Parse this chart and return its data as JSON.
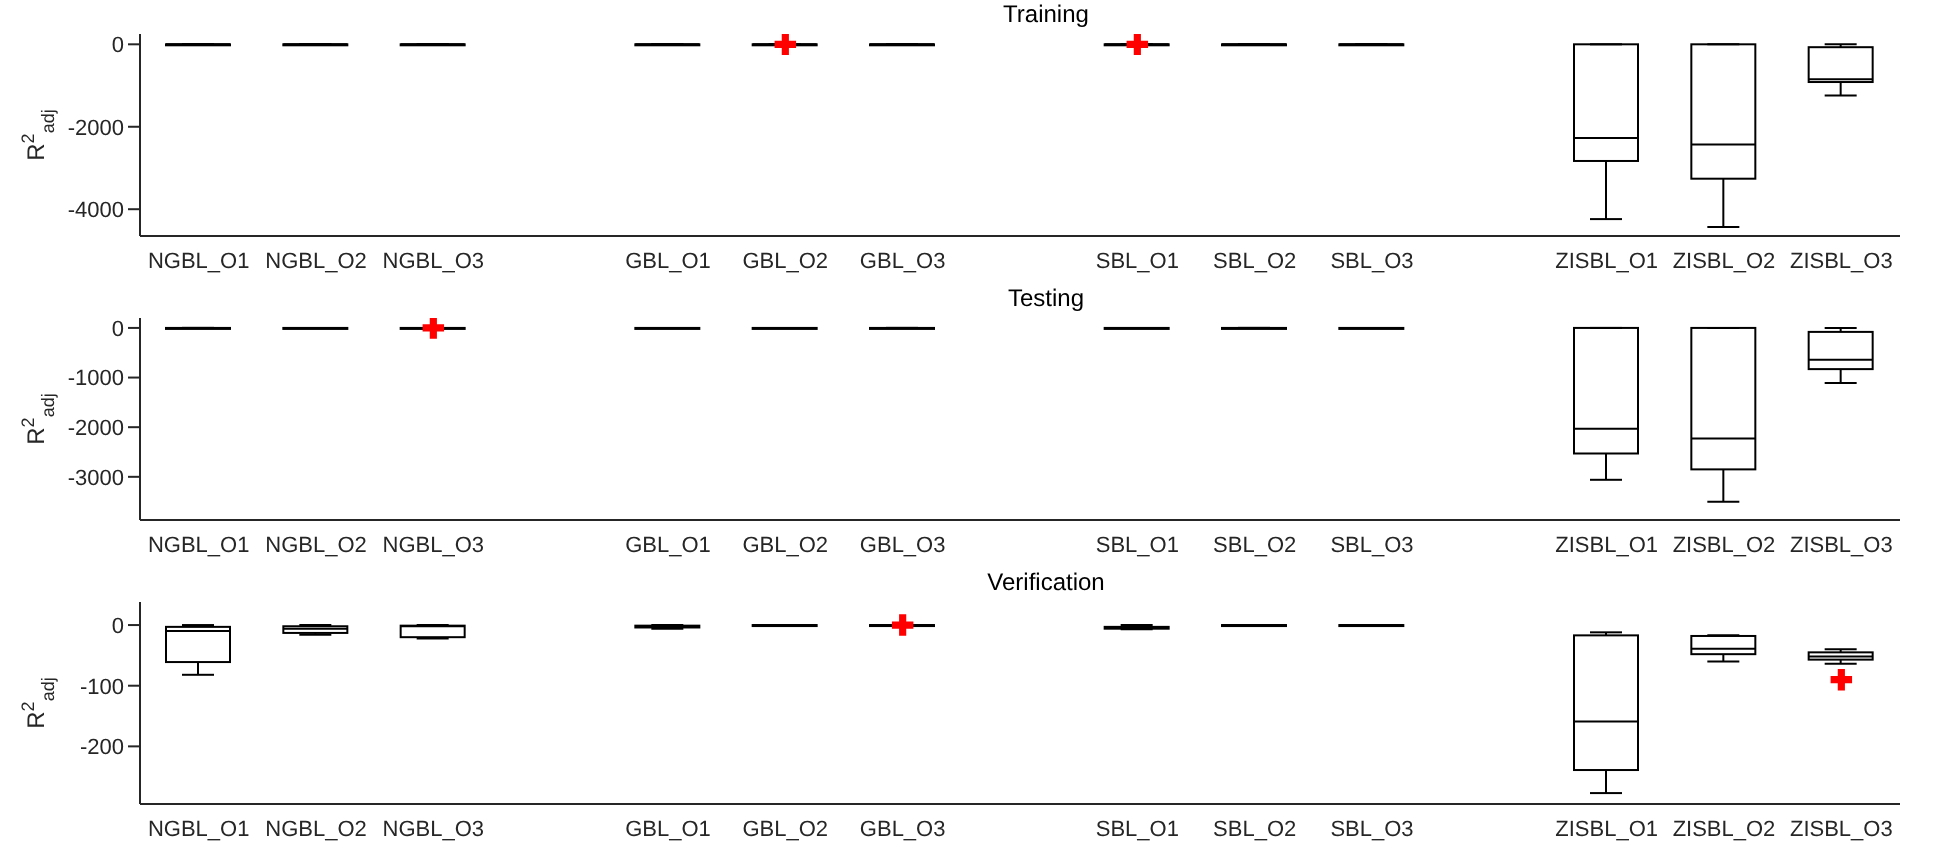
{
  "chart_data": [
    {
      "type": "box",
      "title": "Training",
      "ylabel": "R$^{2}$$_{adj}$",
      "categories": [
        "NGBL_O1",
        "NGBL_O2",
        "NGBL_O3",
        null,
        "GBL_O1",
        "GBL_O2",
        "GBL_O3",
        null,
        "SBL_O1",
        "SBL_O2",
        "SBL_O3",
        null,
        "ZISBL_O1",
        "ZISBL_O2",
        "ZISBL_O3"
      ],
      "ylim": [
        -4650,
        250
      ],
      "yticks": [
        0,
        -2000,
        -4000
      ],
      "series": [
        {
          "color": "#000000",
          "boxes": [
            {
              "low": 0,
              "q1": 0,
              "median": 0,
              "q3": 0,
              "high": 0
            },
            {
              "low": 0,
              "q1": 0,
              "median": 0,
              "q3": 0,
              "high": 0
            },
            {
              "low": 0,
              "q1": 0,
              "median": 0,
              "q3": 0,
              "high": 0
            },
            null,
            {
              "low": 0,
              "q1": 0,
              "median": 0,
              "q3": 0,
              "high": 0
            },
            {
              "low": 0,
              "q1": 0,
              "median": 0,
              "q3": 0,
              "high": 0,
              "outliers": [
                0
              ]
            },
            {
              "low": 0,
              "q1": 0,
              "median": 0,
              "q3": 0,
              "high": 0
            },
            null,
            {
              "low": 0,
              "q1": 0,
              "median": 0,
              "q3": 0,
              "high": 0,
              "outliers": [
                0
              ]
            },
            {
              "low": 0,
              "q1": 0,
              "median": 0,
              "q3": 0,
              "high": 0
            },
            {
              "low": 0,
              "q1": 0,
              "median": 0,
              "q3": 0,
              "high": 0
            },
            null,
            {
              "low": -4240,
              "q1": -2830,
              "median": -2275,
              "q3": 0,
              "high": 0
            },
            {
              "low": -4430,
              "q1": -3260,
              "median": -2430,
              "q3": 0,
              "high": 0
            },
            {
              "low": -1240,
              "q1": -915,
              "median": -850,
              "q3": -70,
              "high": 0
            }
          ]
        }
      ]
    },
    {
      "type": "box",
      "title": "Testing",
      "ylabel": "R$^{2}$$_{adj}$",
      "categories": [
        "NGBL_O1",
        "NGBL_O2",
        "NGBL_O3",
        null,
        "GBL_O1",
        "GBL_O2",
        "GBL_O3",
        null,
        "SBL_O1",
        "SBL_O2",
        "SBL_O3",
        null,
        "ZISBL_O1",
        "ZISBL_O2",
        "ZISBL_O3"
      ],
      "ylim": [
        -3870,
        200
      ],
      "yticks": [
        0,
        -1000,
        -2000,
        -3000
      ],
      "series": [
        {
          "color": "#000000",
          "boxes": [
            {
              "low": 0,
              "q1": 0,
              "median": 0,
              "q3": 0,
              "high": 0
            },
            {
              "low": 0,
              "q1": 0,
              "median": 0,
              "q3": 0,
              "high": 0
            },
            {
              "low": 0,
              "q1": 0,
              "median": 0,
              "q3": 0,
              "high": 0,
              "outliers": [
                0
              ]
            },
            null,
            {
              "low": 0,
              "q1": 0,
              "median": 0,
              "q3": 0,
              "high": 0
            },
            {
              "low": 0,
              "q1": 0,
              "median": 0,
              "q3": 0,
              "high": 0
            },
            {
              "low": 0,
              "q1": 0,
              "median": 0,
              "q3": 0,
              "high": 0
            },
            null,
            {
              "low": 0,
              "q1": 0,
              "median": 0,
              "q3": 0,
              "high": 0
            },
            {
              "low": 0,
              "q1": 0,
              "median": 0,
              "q3": 0,
              "high": 0
            },
            {
              "low": 0,
              "q1": 0,
              "median": 0,
              "q3": 0,
              "high": 0
            },
            null,
            {
              "low": -3060,
              "q1": -2530,
              "median": -2030,
              "q3": 0,
              "high": 0
            },
            {
              "low": -3500,
              "q1": -2850,
              "median": -2230,
              "q3": 0,
              "high": 0
            },
            {
              "low": -1110,
              "q1": -830,
              "median": -640,
              "q3": -80,
              "high": 0
            }
          ]
        }
      ]
    },
    {
      "type": "box",
      "title": "Verification",
      "ylabel": "R$^{2}$$_{adj}$",
      "categories": [
        "NGBL_O1",
        "NGBL_O2",
        "NGBL_O3",
        null,
        "GBL_O1",
        "GBL_O2",
        "GBL_O3",
        null,
        "SBL_O1",
        "SBL_O2",
        "SBL_O3",
        null,
        "ZISBL_O1",
        "ZISBL_O2",
        "ZISBL_O3"
      ],
      "ylim": [
        -295,
        38
      ],
      "yticks": [
        0,
        -100,
        -200
      ],
      "series": [
        {
          "color": "#000000",
          "boxes": [
            {
              "low": -82,
              "q1": -61,
              "median": -10,
              "q3": -3,
              "high": 0
            },
            {
              "low": -16,
              "q1": -13,
              "median": -6,
              "q3": -2,
              "high": 0
            },
            {
              "low": -22,
              "q1": -20,
              "median": -2,
              "q3": -1,
              "high": 0
            },
            null,
            {
              "low": -6,
              "q1": -4,
              "median": -3,
              "q3": -1,
              "high": 0
            },
            {
              "low": 0,
              "q1": 0,
              "median": 0,
              "q3": 0,
              "high": 0
            },
            {
              "low": 0,
              "q1": 0,
              "median": 0,
              "q3": 0,
              "high": 0,
              "outliers": [
                0
              ]
            },
            null,
            {
              "low": -7,
              "q1": -6,
              "median": -5,
              "q3": -3,
              "high": 0
            },
            {
              "low": 0,
              "q1": 0,
              "median": 0,
              "q3": 0,
              "high": 0
            },
            {
              "low": 0,
              "q1": 0,
              "median": 0,
              "q3": 0,
              "high": 0
            },
            null,
            {
              "low": -277,
              "q1": -239,
              "median": -159,
              "q3": -17,
              "high": -12
            },
            {
              "low": -60,
              "q1": -48,
              "median": -39,
              "q3": -18,
              "high": -17
            },
            {
              "low": -64,
              "q1": -57,
              "median": -52,
              "q3": -45,
              "high": -40,
              "outliers": [
                -90
              ]
            }
          ]
        }
      ]
    }
  ]
}
